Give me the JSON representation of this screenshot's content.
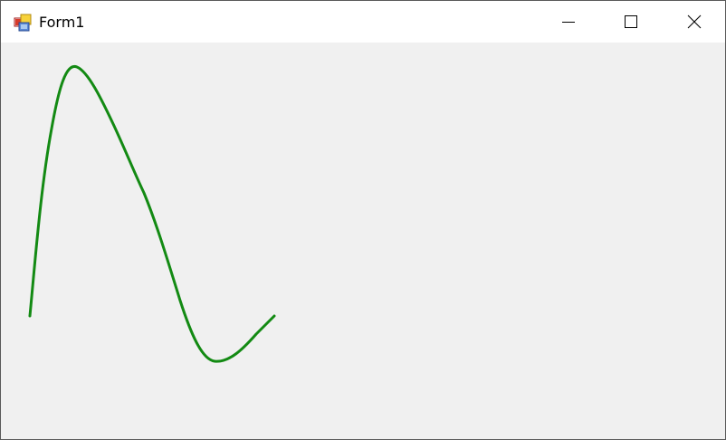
{
  "window": {
    "title": "Form1",
    "icon": "form-app-icon"
  },
  "titlebar": {
    "buttons": [
      {
        "name": "minimize-button",
        "icon": "minimize-icon"
      },
      {
        "name": "maximize-button",
        "icon": "maximize-icon"
      },
      {
        "name": "close-button",
        "icon": "close-icon"
      }
    ]
  },
  "canvas": {
    "curve_color": "#138a13",
    "curve_icon": "green-curve-line"
  }
}
